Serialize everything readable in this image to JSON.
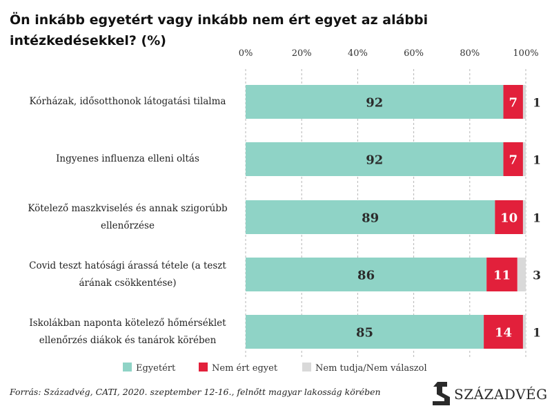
{
  "title": "Ön inkább egyetért vagy inkább nem ért egyet az alábbi intézkedésekkel? (%)",
  "chart_data": {
    "type": "bar",
    "orientation": "horizontal",
    "stacked": true,
    "xlim": [
      0,
      100
    ],
    "x_ticks": [
      "0%",
      "20%",
      "40%",
      "60%",
      "80%",
      "100%"
    ],
    "grid": "vertical dashed",
    "legend_position": "bottom",
    "categories": [
      "Kórházak, idősotthonok látogatási tilalma",
      "Ingyenes influenza elleni oltás",
      "Kötelező maszkviselés és annak szigorúbb ellenőrzése",
      "Covid teszt hatósági árassá tétele (a teszt árának csökkentése)",
      "Iskolákban naponta kötelező hőmérséklet ellenőrzés diákok és tanárok körében"
    ],
    "series": [
      {
        "name": "Egyetért",
        "color": "#8fd3c6",
        "values": [
          92,
          92,
          89,
          86,
          85
        ]
      },
      {
        "name": "Nem ért egyet",
        "color": "#e2203b",
        "values": [
          7,
          7,
          10,
          11,
          14
        ]
      },
      {
        "name": "Nem tudja/Nem válaszol",
        "color": "#d9d9d9",
        "values": [
          1,
          1,
          1,
          3,
          1
        ]
      }
    ]
  },
  "labels": [
    {
      "lines": [
        "Kórházak, idősotthonok látogatási tilalma"
      ]
    },
    {
      "lines": [
        "Ingyenes influenza elleni oltás"
      ]
    },
    {
      "lines": [
        "Kötelező maszkviselés és annak szigorúbb",
        "ellenőrzése"
      ]
    },
    {
      "lines": [
        "Covid teszt hatósági árassá tétele (a teszt",
        "árának csökkentése)"
      ]
    },
    {
      "lines": [
        "Iskolákban naponta kötelező hőmérséklet",
        "ellenőrzés diákok és tanárok körében"
      ]
    }
  ],
  "source": "Forrás: Századvég, CATI, 2020. szeptember 12-16., felnőtt magyar lakosság körében",
  "logo": {
    "text": "SZÁZADVÉG"
  }
}
